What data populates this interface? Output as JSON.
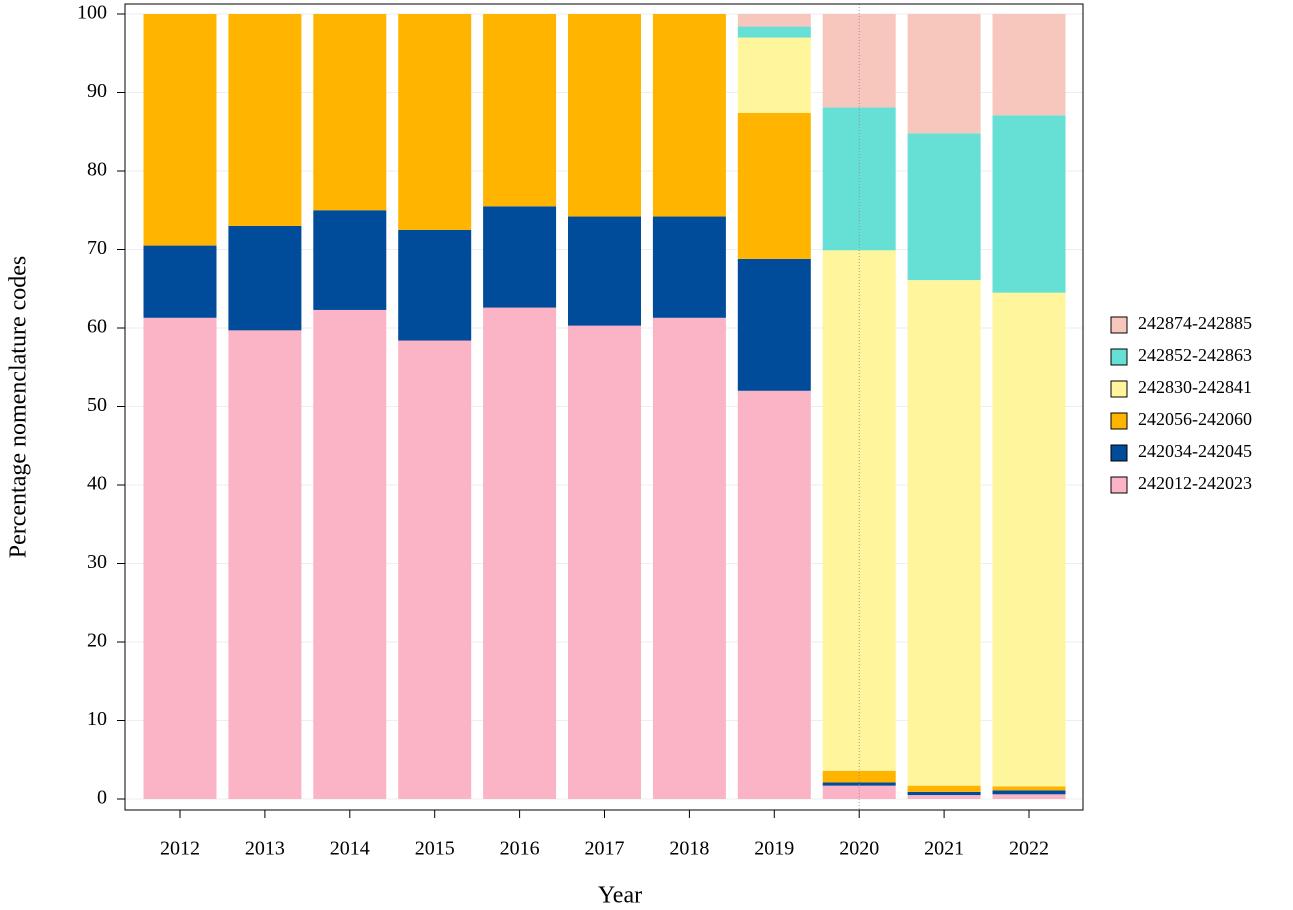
{
  "chart_data": {
    "type": "stacked_bar",
    "x_label": "Year",
    "y_label": "Percentage nomenclature codes",
    "categories": [
      "2012",
      "2013",
      "2014",
      "2015",
      "2016",
      "2017",
      "2018",
      "2019",
      "2020",
      "2021",
      "2022"
    ],
    "series": [
      {
        "name": "242012-242023",
        "color": "#fbb4c6",
        "values": [
          61.3,
          59.7,
          62.3,
          58.4,
          62.6,
          60.3,
          61.3,
          52.0,
          1.7,
          0.5,
          0.6
        ]
      },
      {
        "name": "242034-242045",
        "color": "#004c9b",
        "values": [
          9.2,
          13.3,
          12.7,
          14.1,
          12.9,
          13.9,
          12.9,
          16.8,
          0.4,
          0.4,
          0.5
        ]
      },
      {
        "name": "242056-242060",
        "color": "#ffb400",
        "values": [
          29.5,
          27.0,
          25.0,
          27.5,
          24.5,
          25.8,
          25.8,
          18.6,
          1.5,
          0.8,
          0.5
        ]
      },
      {
        "name": "242830-242841",
        "color": "#fff59d",
        "values": [
          0,
          0,
          0,
          0,
          0,
          0,
          0,
          9.6,
          66.3,
          64.4,
          62.9
        ]
      },
      {
        "name": "242852-242863",
        "color": "#66e0d4",
        "values": [
          0,
          0,
          0,
          0,
          0,
          0,
          0,
          1.4,
          18.2,
          18.7,
          22.6
        ]
      },
      {
        "name": "242874-242885",
        "color": "#f7c6bd",
        "values": [
          0,
          0,
          0,
          0,
          0,
          0,
          0,
          1.6,
          11.9,
          15.2,
          12.9
        ]
      }
    ],
    "ylim": [
      0,
      100
    ],
    "yticks": [
      0,
      10,
      20,
      30,
      40,
      50,
      60,
      70,
      80,
      90,
      100
    ],
    "grid": true,
    "legend": "right"
  }
}
